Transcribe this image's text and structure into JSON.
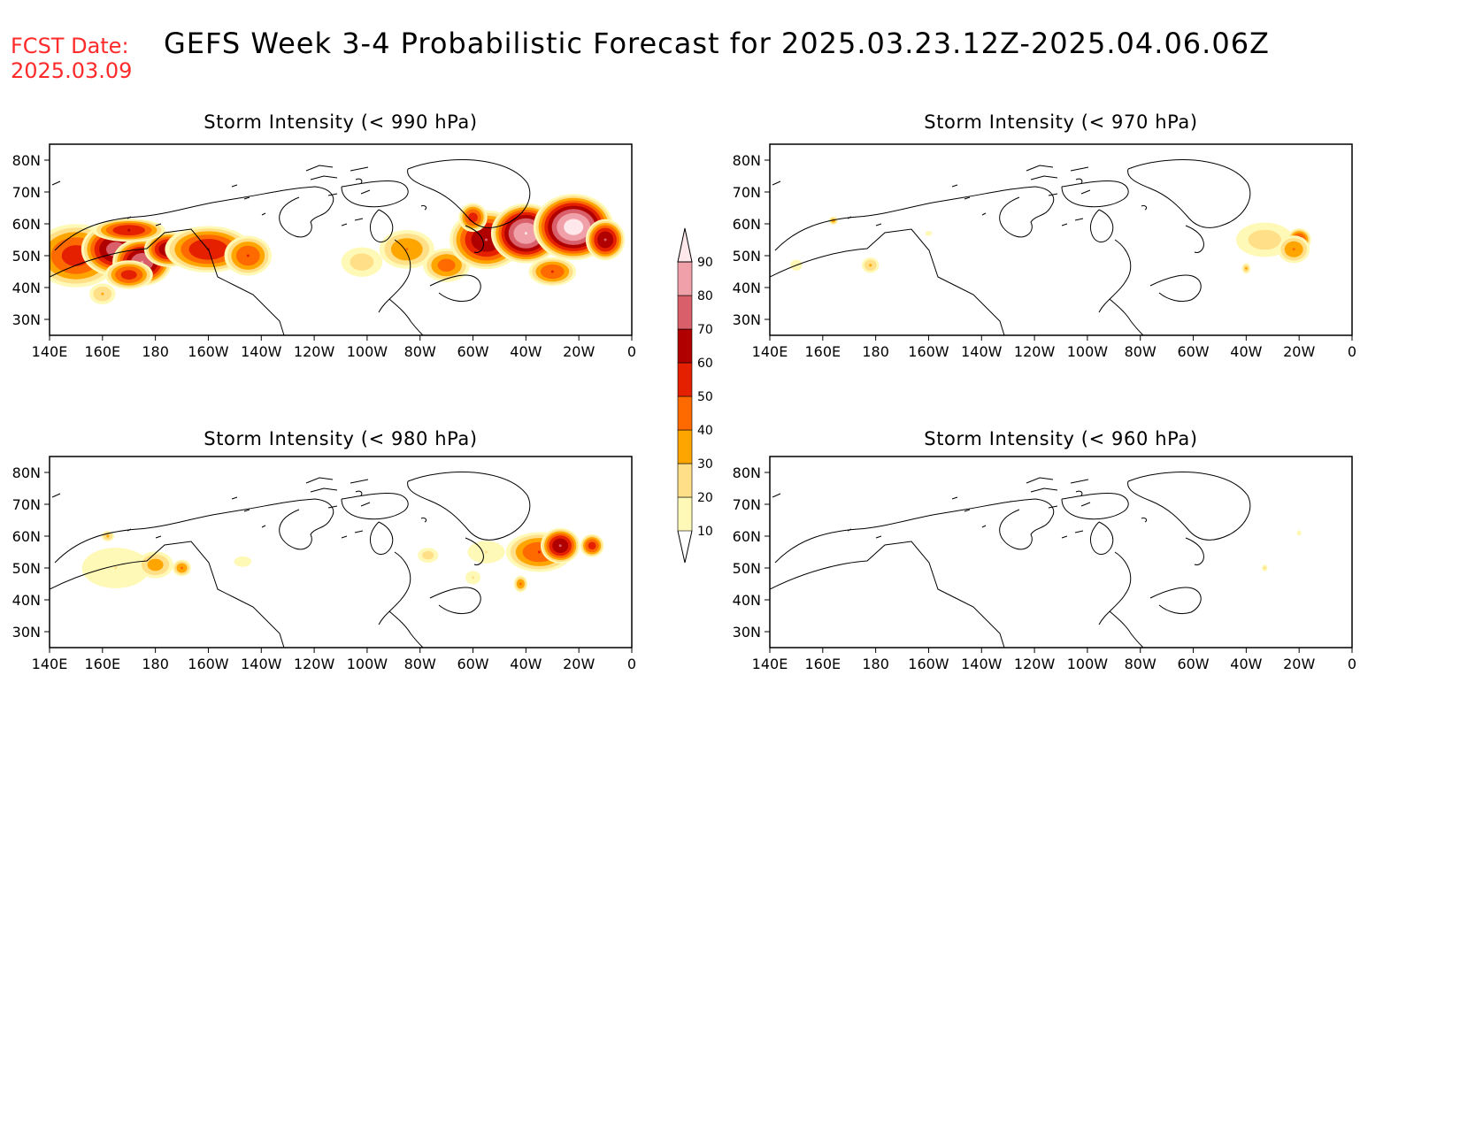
{
  "header": {
    "fcst_label": "FCST Date:",
    "fcst_date": "2025.03.09",
    "title": "GEFS Week 3-4 Probabilistic Forecast for 2025.03.23.12Z-2025.04.06.06Z"
  },
  "axes": {
    "lat_ticks": [
      "80N",
      "70N",
      "60N",
      "50N",
      "40N",
      "30N"
    ],
    "lon_ticks": [
      "140E",
      "160E",
      "180",
      "160W",
      "140W",
      "120W",
      "100W",
      "80W",
      "60W",
      "40W",
      "20W",
      "0"
    ]
  },
  "colorbar": {
    "levels": [
      "10",
      "20",
      "30",
      "40",
      "50",
      "60",
      "70",
      "80",
      "90"
    ],
    "colors": [
      "#fff9b8",
      "#ffe088",
      "#ffa500",
      "#ff6a00",
      "#e42000",
      "#b00000",
      "#d9606a",
      "#f0a0a8",
      "#ffe8ec"
    ]
  },
  "panels": [
    {
      "id": "p990",
      "title": "Storm Intensity (< 990 hPa)",
      "blobs": [
        [
          150,
          50,
          18,
          11,
          0.55
        ],
        [
          165,
          52,
          14,
          9,
          0.75
        ],
        [
          175,
          48,
          12,
          8,
          0.8
        ],
        [
          185,
          52,
          10,
          6,
          0.7
        ],
        [
          200,
          52,
          18,
          8,
          0.6
        ],
        [
          215,
          50,
          10,
          7,
          0.5
        ],
        [
          170,
          44,
          10,
          5,
          0.55
        ],
        [
          160,
          38,
          6,
          4,
          0.3
        ],
        [
          258,
          48,
          10,
          6,
          0.25
        ],
        [
          275,
          52,
          12,
          7,
          0.4
        ],
        [
          290,
          47,
          10,
          6,
          0.45
        ],
        [
          305,
          55,
          15,
          10,
          0.7
        ],
        [
          320,
          57,
          14,
          10,
          0.9
        ],
        [
          338,
          59,
          16,
          11,
          0.95
        ],
        [
          350,
          55,
          8,
          7,
          0.7
        ],
        [
          330,
          45,
          10,
          5,
          0.5
        ],
        [
          300,
          62,
          6,
          5,
          0.55
        ],
        [
          170,
          58,
          15,
          4,
          0.6
        ]
      ]
    },
    {
      "id": "p970",
      "title": "Storm Intensity (< 970 hPa)",
      "blobs": [
        [
          327,
          55,
          14,
          7,
          0.25
        ],
        [
          340,
          55,
          5,
          4,
          0.55
        ],
        [
          338,
          52,
          7,
          5,
          0.4
        ],
        [
          150,
          47,
          4,
          3,
          0.15
        ],
        [
          178,
          47,
          4,
          3,
          0.3
        ],
        [
          200,
          57,
          3,
          2,
          0.12
        ],
        [
          164,
          61,
          2,
          1.5,
          0.35
        ],
        [
          320,
          46,
          2,
          2,
          0.3
        ]
      ]
    },
    {
      "id": "p980",
      "title": "Storm Intensity (< 980 hPa)",
      "blobs": [
        [
          165,
          50,
          18,
          9,
          0.2
        ],
        [
          180,
          51,
          8,
          5,
          0.35
        ],
        [
          190,
          50,
          4,
          3,
          0.4
        ],
        [
          213,
          52,
          8,
          4,
          0.12
        ],
        [
          283,
          54,
          5,
          3,
          0.25
        ],
        [
          305,
          55,
          10,
          5,
          0.2
        ],
        [
          325,
          55,
          14,
          7,
          0.5
        ],
        [
          333,
          57,
          8,
          6,
          0.7
        ],
        [
          345,
          57,
          5,
          4,
          0.55
        ],
        [
          318,
          45,
          3,
          3,
          0.4
        ],
        [
          300,
          47,
          4,
          3,
          0.2
        ],
        [
          162,
          60,
          3,
          2,
          0.3
        ]
      ]
    },
    {
      "id": "p960",
      "title": "Storm Intensity (< 960 hPa)",
      "blobs": [
        [
          327,
          50,
          1.5,
          1.5,
          0.2
        ],
        [
          340,
          61,
          1.5,
          1.5,
          0.15
        ]
      ]
    }
  ]
}
